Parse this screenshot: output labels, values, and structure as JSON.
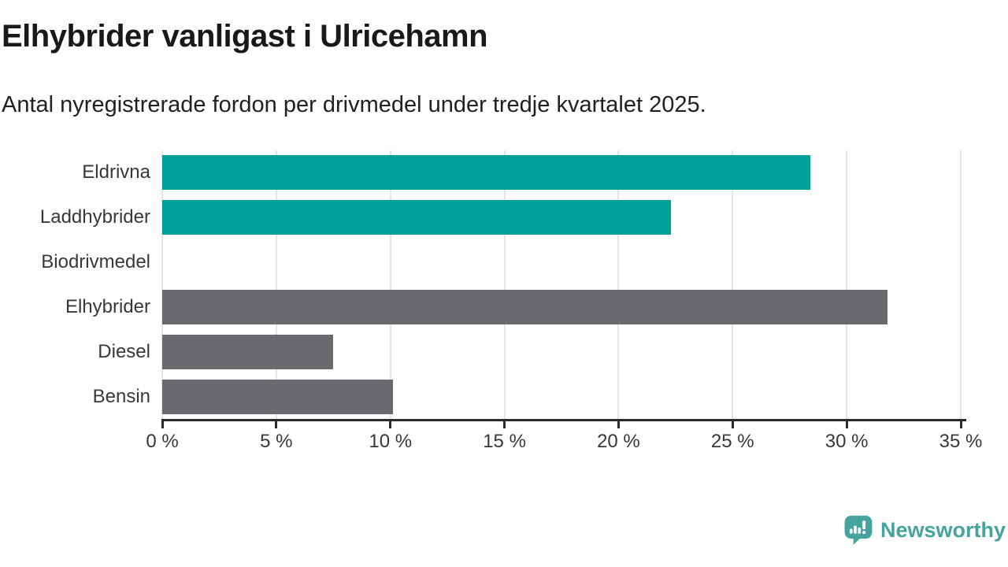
{
  "header": {
    "title": "Elhybrider vanligast i Ulricehamn",
    "subtitle": "Antal nyregistrerade fordon per drivmedel under tredje kvartalet 2025."
  },
  "chart_data": {
    "type": "bar",
    "orientation": "horizontal",
    "title": "Elhybrider vanligast i Ulricehamn",
    "subtitle": "Antal nyregistrerade fordon per drivmedel under tredje kvartalet 2025.",
    "categories": [
      "Eldrivna",
      "Laddhybrider",
      "Biodrivmedel",
      "Elhybrider",
      "Diesel",
      "Bensin"
    ],
    "values": [
      28.4,
      22.3,
      0,
      31.8,
      7.5,
      10.1
    ],
    "unit": "%",
    "xlabel": "",
    "ylabel": "",
    "xlim": [
      0,
      35
    ],
    "x_ticks": [
      0,
      5,
      10,
      15,
      20,
      25,
      30,
      35
    ],
    "x_tick_labels": [
      "0 %",
      "5 %",
      "10 %",
      "15 %",
      "20 %",
      "25 %",
      "30 %",
      "35 %"
    ],
    "grid": "vertical-only",
    "legend": "none",
    "bar_colors": [
      "#00a09a",
      "#00a09a",
      "#00a09a",
      "#6a6a6e",
      "#6a6a6e",
      "#6a6a6e"
    ]
  },
  "colors": {
    "teal": "#00a09a",
    "gray": "#6a6a6e",
    "gridline": "#e5e5e5",
    "axis": "#2b2b2b",
    "text": "#383838",
    "title_text": "#191919",
    "brand": "#46a39d"
  },
  "footer": {
    "brand_label": "Newsworthy",
    "logo_icon": "newsworthy-speech-bubble-bar-chart-icon"
  }
}
